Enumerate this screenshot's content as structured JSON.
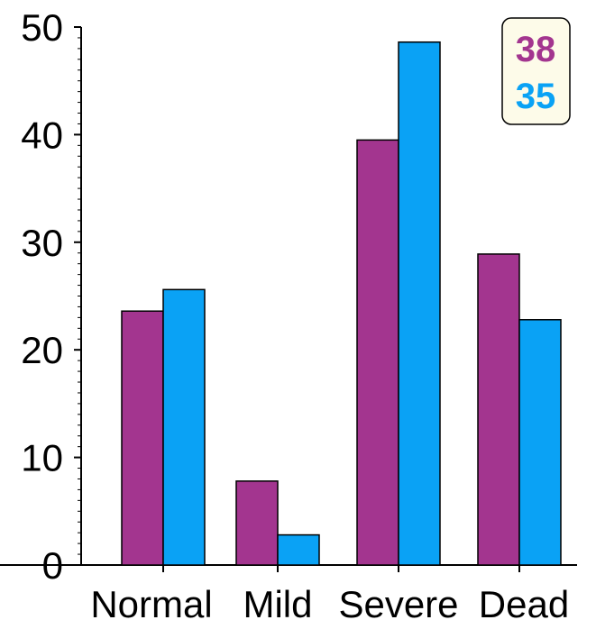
{
  "chart_data": {
    "type": "bar",
    "categories": [
      "Normal",
      "Mild",
      "Severe",
      "Dead"
    ],
    "series": [
      {
        "name": "38",
        "color": "#a3358f",
        "values": [
          23.6,
          7.8,
          39.5,
          28.9
        ]
      },
      {
        "name": "35",
        "color": "#0aa2f5",
        "values": [
          25.6,
          2.8,
          48.6,
          22.8
        ]
      }
    ],
    "title": "",
    "xlabel": "",
    "ylabel": "",
    "ylim": [
      0,
      50
    ],
    "yticks": [
      "0",
      "10",
      "20",
      "30",
      "40",
      "50"
    ],
    "grid": false,
    "legend_position": "top-right"
  }
}
